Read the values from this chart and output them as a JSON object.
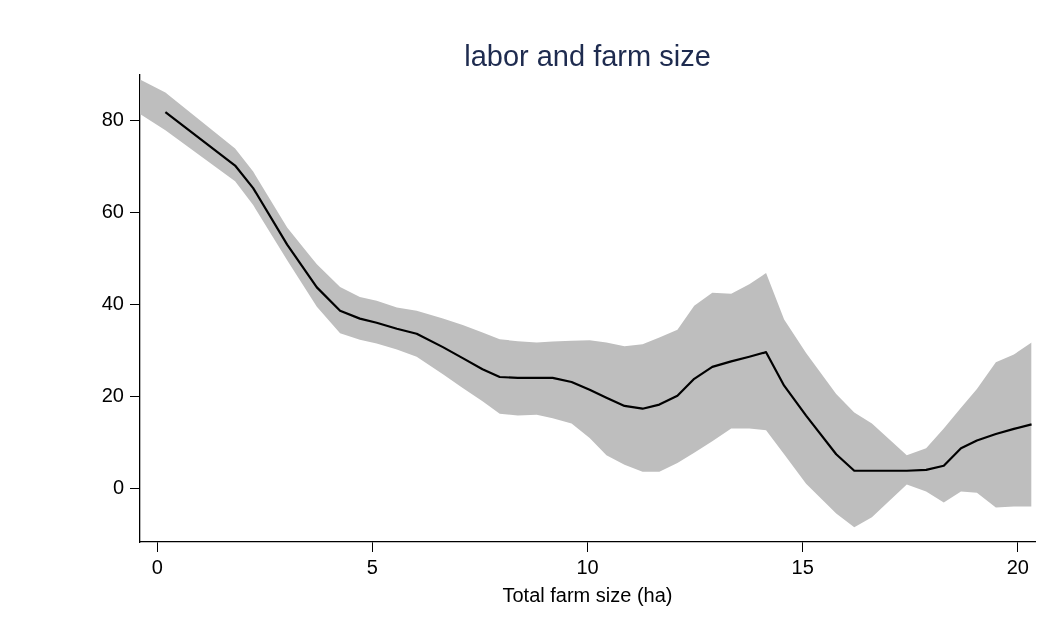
{
  "chart_data": {
    "type": "line",
    "title": "labor and farm size",
    "xlabel": "Total farm size (ha)",
    "x": [
      -0.4,
      0.19,
      1.81,
      2.23,
      3.02,
      3.71,
      4.25,
      4.71,
      5.1,
      5.57,
      6.03,
      6.64,
      7.1,
      7.56,
      7.96,
      8.38,
      8.82,
      9.19,
      9.63,
      10.05,
      10.44,
      10.86,
      11.28,
      11.67,
      12.09,
      12.48,
      12.9,
      13.34,
      13.76,
      14.15,
      14.57,
      15.08,
      15.78,
      16.2,
      16.61,
      17.42,
      17.87,
      18.28,
      18.68,
      19.05,
      19.49,
      19.91,
      20.32
    ],
    "series": [
      {
        "color": "#000000",
        "values": [
          null,
          81.9,
          70.3,
          65.4,
          53.1,
          43.8,
          38.7,
          37,
          36.1,
          34.8,
          33.7,
          30.8,
          28.4,
          26,
          24.3,
          24.1,
          24.1,
          24.1,
          23.2,
          21.5,
          19.8,
          18,
          17.4,
          18.3,
          20.2,
          23.9,
          26.5,
          27.7,
          28.7,
          29.7,
          22.4,
          15.9,
          7.5,
          3.9,
          3.9,
          3.9,
          4.1,
          5,
          8.8,
          10.5,
          11.9,
          13,
          14
        ],
        "upper": [
          89,
          86.2,
          74,
          69,
          56.8,
          48.8,
          43.9,
          41.7,
          40.9,
          39.4,
          38.7,
          37,
          35.6,
          34,
          32.5,
          32.1,
          31.8,
          32,
          32.2,
          32.3,
          31.8,
          31,
          31.4,
          32.9,
          34.6,
          39.8,
          42.6,
          42.4,
          44.5,
          46.9,
          36.8,
          29.5,
          20.6,
          16.6,
          14.2,
          7.3,
          8.8,
          13.1,
          17.6,
          21.7,
          27.5,
          29.2,
          31.8
        ],
        "lower": [
          81.5,
          78,
          66.9,
          61.7,
          49.7,
          39.6,
          33.8,
          32.4,
          31.6,
          30.3,
          28.7,
          24.9,
          21.9,
          19,
          16.3,
          15.9,
          16.1,
          15.3,
          14.2,
          11,
          7.3,
          5.2,
          3.7,
          3.7,
          5.6,
          7.8,
          10.3,
          13.1,
          13.1,
          12.7,
          7.5,
          1.1,
          -5.4,
          -8.4,
          -6.2,
          0.9,
          -0.6,
          -3,
          -0.6,
          -0.9,
          -4.1,
          -3.9,
          -3.9
        ]
      }
    ],
    "xlim": [
      -0.4,
      20.4
    ],
    "xticks": [
      0,
      5,
      10,
      15,
      20
    ],
    "ylim": [
      -11.6,
      90
    ],
    "yticks": [
      0,
      20,
      40,
      60,
      80
    ],
    "grid": false,
    "legend": false,
    "marker": "none",
    "line_style": "solid"
  }
}
